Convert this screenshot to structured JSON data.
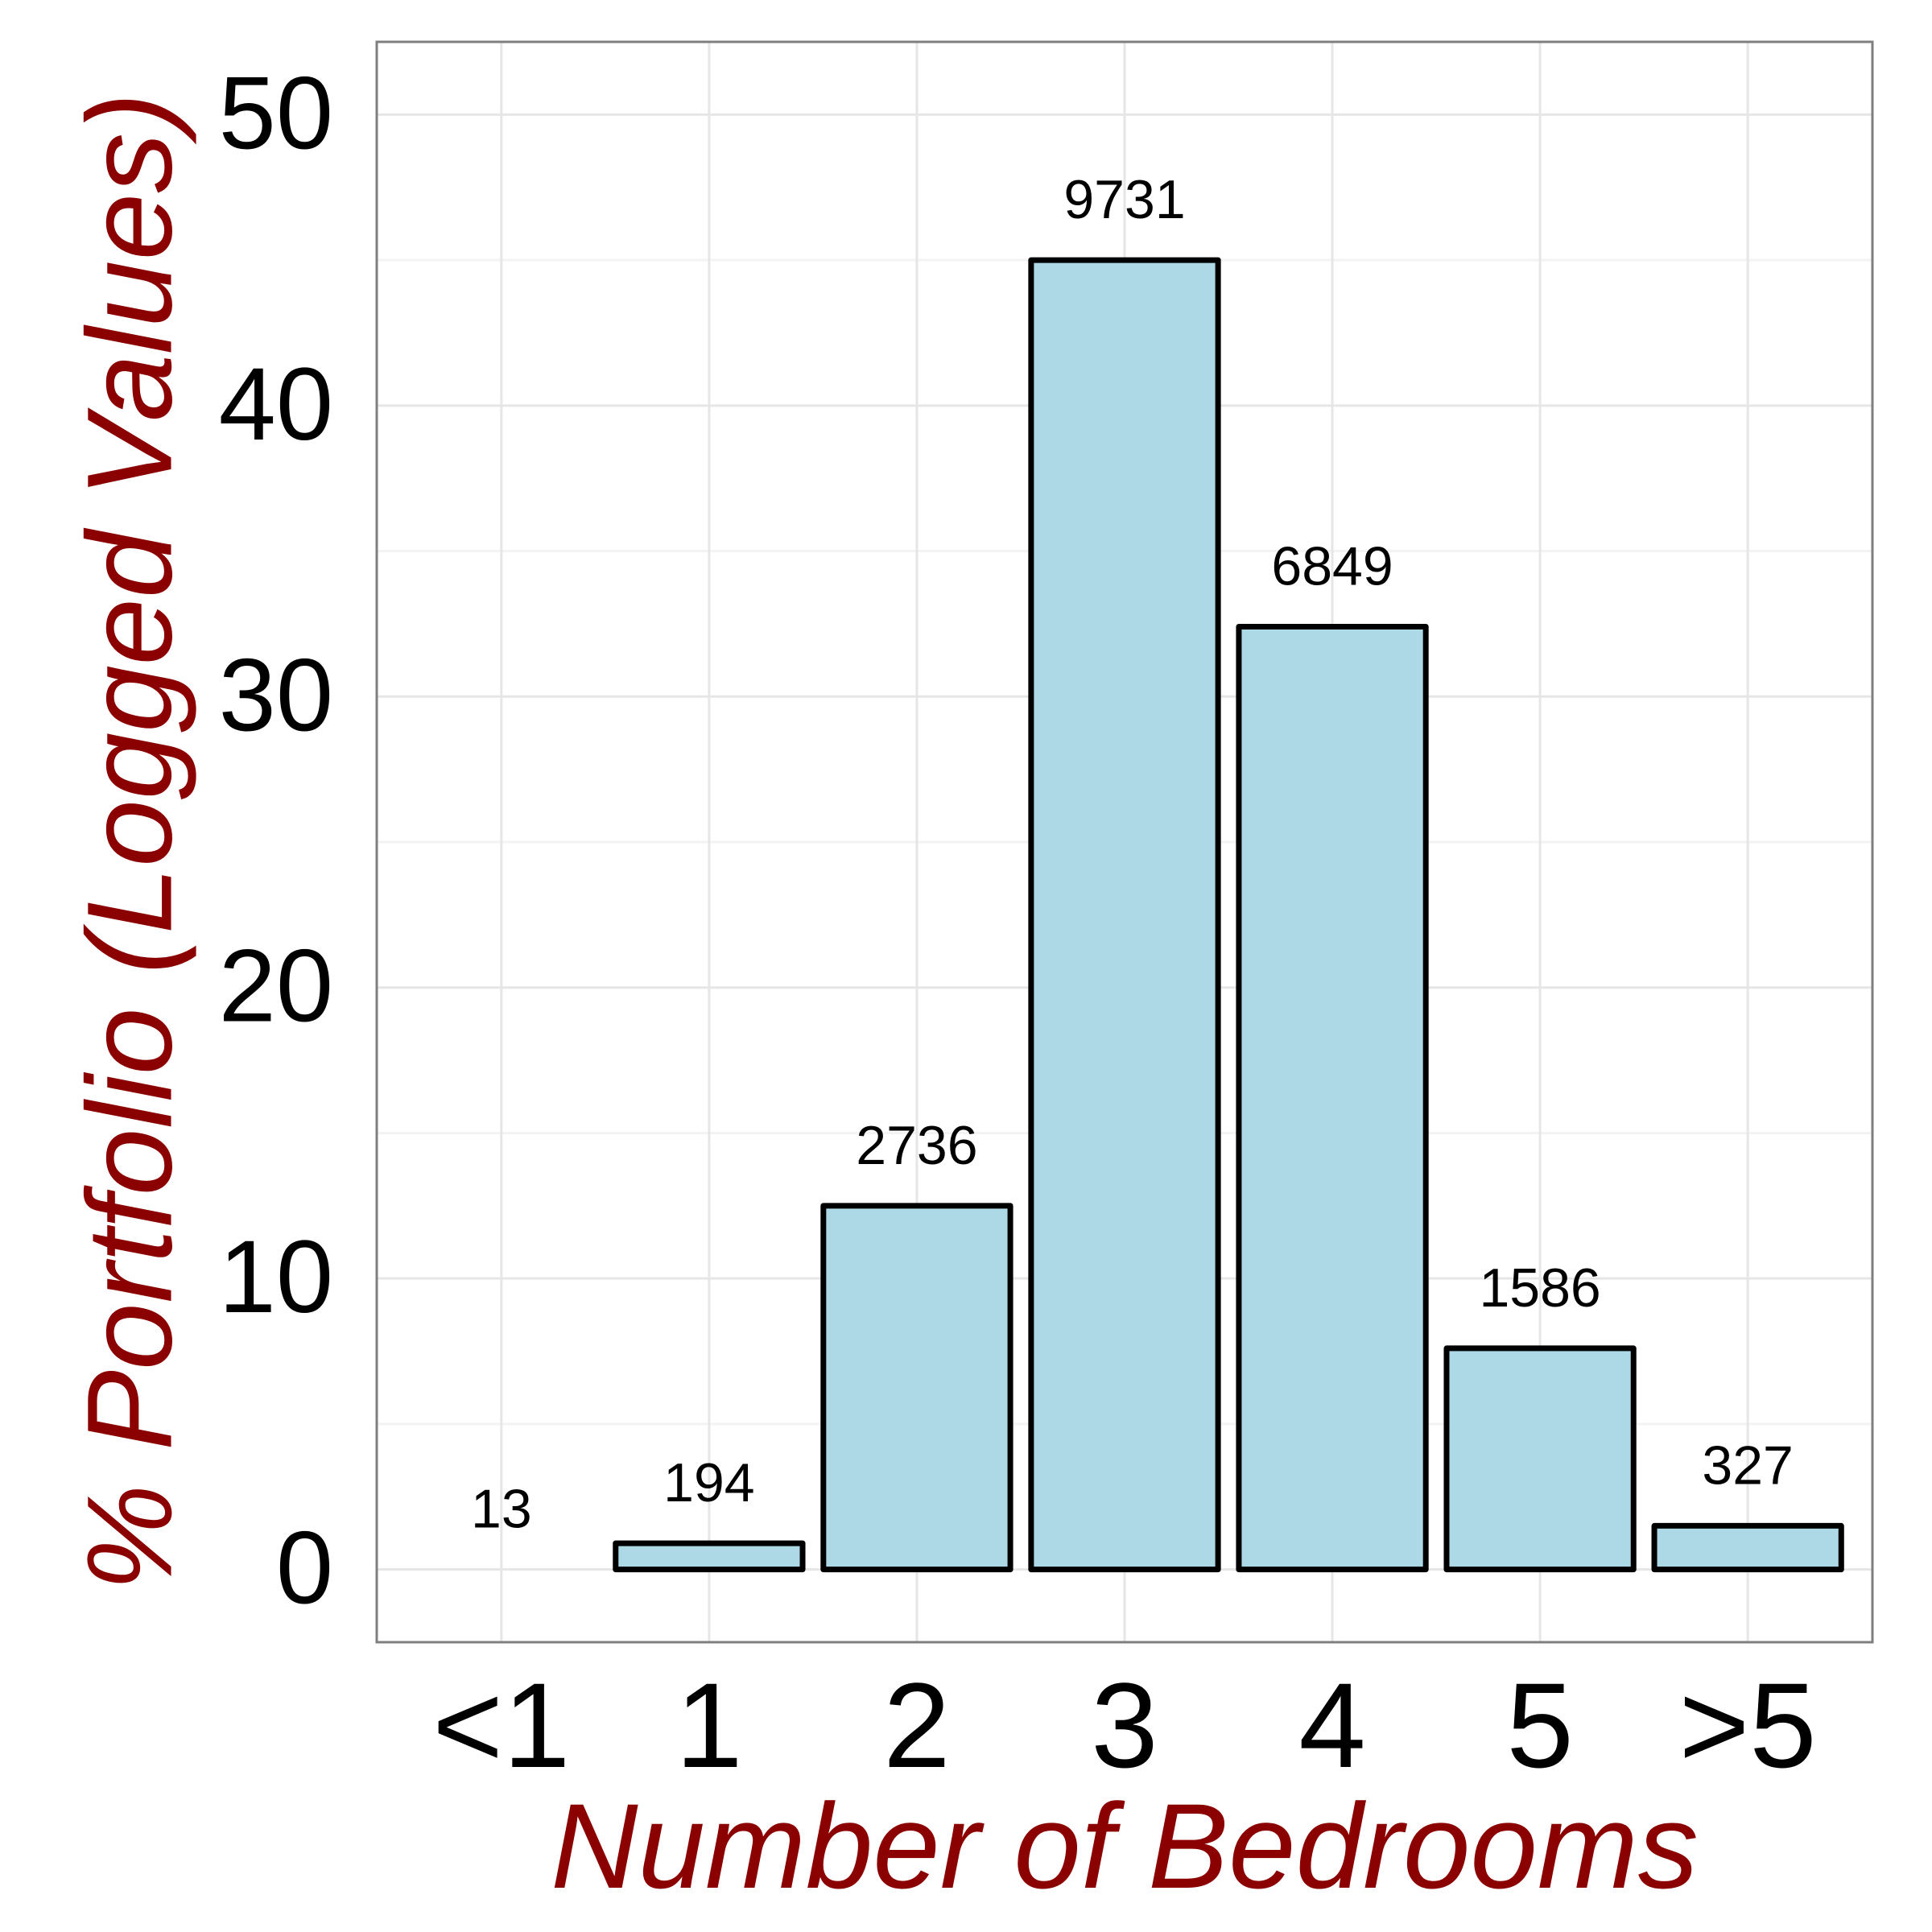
{
  "chart_data": {
    "type": "bar",
    "xlabel": "Number of Bedrooms",
    "ylabel": "% Portfolio (Logged Values)",
    "categories": [
      "<1",
      "1",
      "2",
      "3",
      "4",
      "5",
      ">5"
    ],
    "values": [
      0.0,
      0.9,
      12.5,
      45.0,
      32.4,
      7.6,
      1.5
    ],
    "bar_labels": [
      "13",
      "194",
      "2736",
      "9731",
      "6849",
      "1586",
      "327"
    ],
    "ylim": [
      -2.5,
      52.5
    ],
    "yticks": [
      0,
      10,
      20,
      30,
      40,
      50
    ],
    "ytick_labels": [
      "0",
      "10",
      "20",
      "30",
      "40",
      "50"
    ],
    "grid": true,
    "colors": {
      "bar_fill": "#add8e6",
      "bar_stroke": "#000000",
      "axis_title": "#8b0000",
      "grid_major": "#e6e6e6",
      "grid_minor": "#f3f3f3",
      "panel_border": "#7f7f7f"
    }
  }
}
